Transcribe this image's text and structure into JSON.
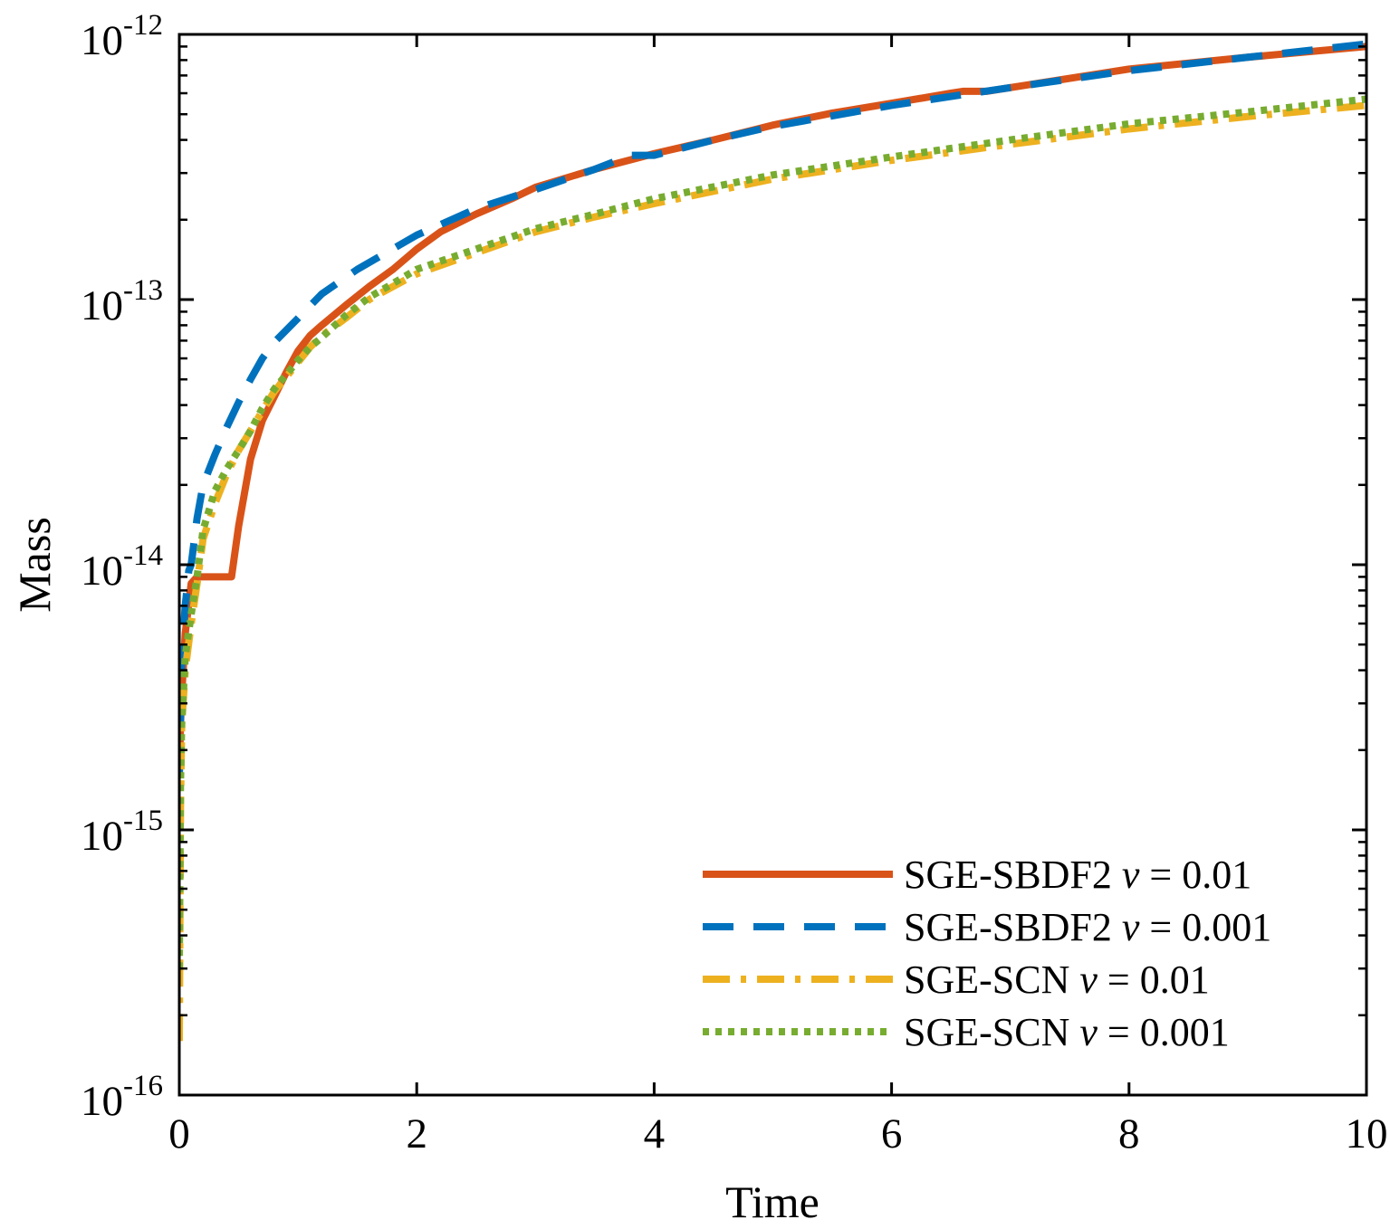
{
  "chart_data": {
    "type": "line",
    "xlabel": "Time",
    "ylabel": "Mass",
    "xscale": "linear",
    "yscale": "log",
    "xlim": [
      0,
      10
    ],
    "ylim": [
      1e-16,
      1e-12
    ],
    "xticks": [
      0,
      2,
      4,
      6,
      8,
      10
    ],
    "xtick_labels": [
      "0",
      "2",
      "4",
      "6",
      "8",
      "10"
    ],
    "yticks": [
      1e-16,
      1e-15,
      1e-14,
      1e-13,
      1e-12
    ],
    "ytick_labels": [
      {
        "base": "10",
        "exp": "-16"
      },
      {
        "base": "10",
        "exp": "-15"
      },
      {
        "base": "10",
        "exp": "-14"
      },
      {
        "base": "10",
        "exp": "-13"
      },
      {
        "base": "10",
        "exp": "-12"
      }
    ],
    "grid": false,
    "legend_location": "bottom-right",
    "series": [
      {
        "name": "SGE-SBDF2",
        "param_symbol": "ν",
        "param_value": "0.01",
        "color": "#D95319",
        "style": "solid",
        "x": [
          0,
          0.01,
          0.02,
          0.05,
          0.1,
          0.15,
          0.2,
          0.3,
          0.44,
          0.5,
          0.6,
          0.7,
          0.8,
          0.9,
          1.0,
          1.1,
          1.2,
          1.4,
          1.6,
          1.8,
          2.0,
          2.2,
          2.5,
          2.8,
          3.0,
          3.5,
          4.0,
          4.5,
          5.0,
          5.5,
          6.0,
          6.5,
          6.6,
          6.8,
          7.0,
          8.0,
          9.0,
          10.0
        ],
        "y": [
          1.6e-15,
          2.5e-15,
          3.2e-15,
          5.5e-15,
          8.5e-15,
          9e-15,
          9e-15,
          9e-15,
          9e-15,
          1.4e-14,
          2.5e-14,
          3.5e-14,
          4.3e-14,
          5.3e-14,
          6.4e-14,
          7.3e-14,
          8e-14,
          9.5e-14,
          1.12e-13,
          1.3e-13,
          1.55e-13,
          1.8e-13,
          2.1e-13,
          2.4e-13,
          2.65e-13,
          3.1e-13,
          3.55e-13,
          4e-13,
          4.55e-13,
          5.05e-13,
          5.5e-13,
          6e-13,
          6.1e-13,
          6.1e-13,
          6.3e-13,
          7.4e-13,
          8.2e-13,
          9e-13
        ]
      },
      {
        "name": "SGE-SBDF2",
        "param_symbol": "ν",
        "param_value": "0.001",
        "color": "#0072BD",
        "style": "dashed",
        "x": [
          0,
          0.01,
          0.02,
          0.05,
          0.08,
          0.1,
          0.15,
          0.2,
          0.3,
          0.4,
          0.5,
          0.6,
          0.7,
          0.8,
          1.0,
          1.2,
          1.5,
          2.0,
          2.5,
          3.0,
          3.5,
          3.8,
          4.0,
          4.5,
          5.0,
          6.0,
          7.0,
          8.0,
          9.0,
          10.0
        ],
        "y": [
          1.6e-15,
          2.6e-15,
          4.5e-15,
          7e-15,
          9.5e-15,
          1e-14,
          1.5e-14,
          2e-14,
          2.6e-14,
          3.3e-14,
          4.1e-14,
          5e-14,
          6e-14,
          6.9e-14,
          8.5e-14,
          1.05e-13,
          1.3e-13,
          1.75e-13,
          2.2e-13,
          2.6e-13,
          3.1e-13,
          3.5e-13,
          3.5e-13,
          4e-13,
          4.5e-13,
          5.4e-13,
          6.3e-13,
          7.3e-13,
          8.2e-13,
          9.2e-13
        ]
      },
      {
        "name": "SGE-SCN",
        "param_symbol": "ν",
        "param_value": "0.01",
        "color": "#EDB120",
        "style": "dashdot",
        "x": [
          0,
          0.01,
          0.02,
          0.05,
          0.1,
          0.15,
          0.2,
          0.3,
          0.4,
          0.5,
          0.6,
          0.7,
          0.8,
          0.9,
          1.0,
          1.1,
          1.2,
          1.4,
          1.6,
          1.8,
          2.0,
          2.5,
          3.0,
          3.5,
          4.0,
          5.0,
          6.0,
          7.0,
          8.0,
          9.0,
          10.0
        ],
        "y": [
          1.6e-16,
          1.2e-15,
          2.5e-15,
          4e-15,
          6e-15,
          8.5e-15,
          1.25e-14,
          1.7e-14,
          2.2e-14,
          2.7e-14,
          3.2e-14,
          3.8e-14,
          4.5e-14,
          5.1e-14,
          5.8e-14,
          6.6e-14,
          7.3e-14,
          8.5e-14,
          1e-13,
          1.12e-13,
          1.25e-13,
          1.5e-13,
          1.8e-13,
          2.05e-13,
          2.3e-13,
          2.85e-13,
          3.35e-13,
          3.85e-13,
          4.4e-13,
          4.9e-13,
          5.4e-13
        ]
      },
      {
        "name": "SGE-SCN",
        "param_symbol": "ν",
        "param_value": "0.001",
        "color": "#77AC30",
        "style": "dotted",
        "x": [
          0,
          0.01,
          0.02,
          0.05,
          0.1,
          0.15,
          0.2,
          0.3,
          0.4,
          0.5,
          0.6,
          0.7,
          0.8,
          0.9,
          1.0,
          1.1,
          1.2,
          1.4,
          1.6,
          1.8,
          2.0,
          2.5,
          3.0,
          3.5,
          4.0,
          5.0,
          6.0,
          7.0,
          8.0,
          9.0,
          10.0
        ],
        "y": [
          3e-16,
          1.5e-15,
          2.5e-15,
          4.5e-15,
          6.5e-15,
          9e-15,
          1.35e-14,
          1.9e-14,
          2.3e-14,
          2.7e-14,
          3.2e-14,
          3.9e-14,
          4.6e-14,
          5.2e-14,
          5.9e-14,
          6.6e-14,
          7.2e-14,
          8.7e-14,
          1.02e-13,
          1.15e-13,
          1.3e-13,
          1.55e-13,
          1.85e-13,
          2.1e-13,
          2.4e-13,
          2.95e-13,
          3.45e-13,
          4e-13,
          4.6e-13,
          5.1e-13,
          5.7e-13
        ]
      }
    ]
  }
}
